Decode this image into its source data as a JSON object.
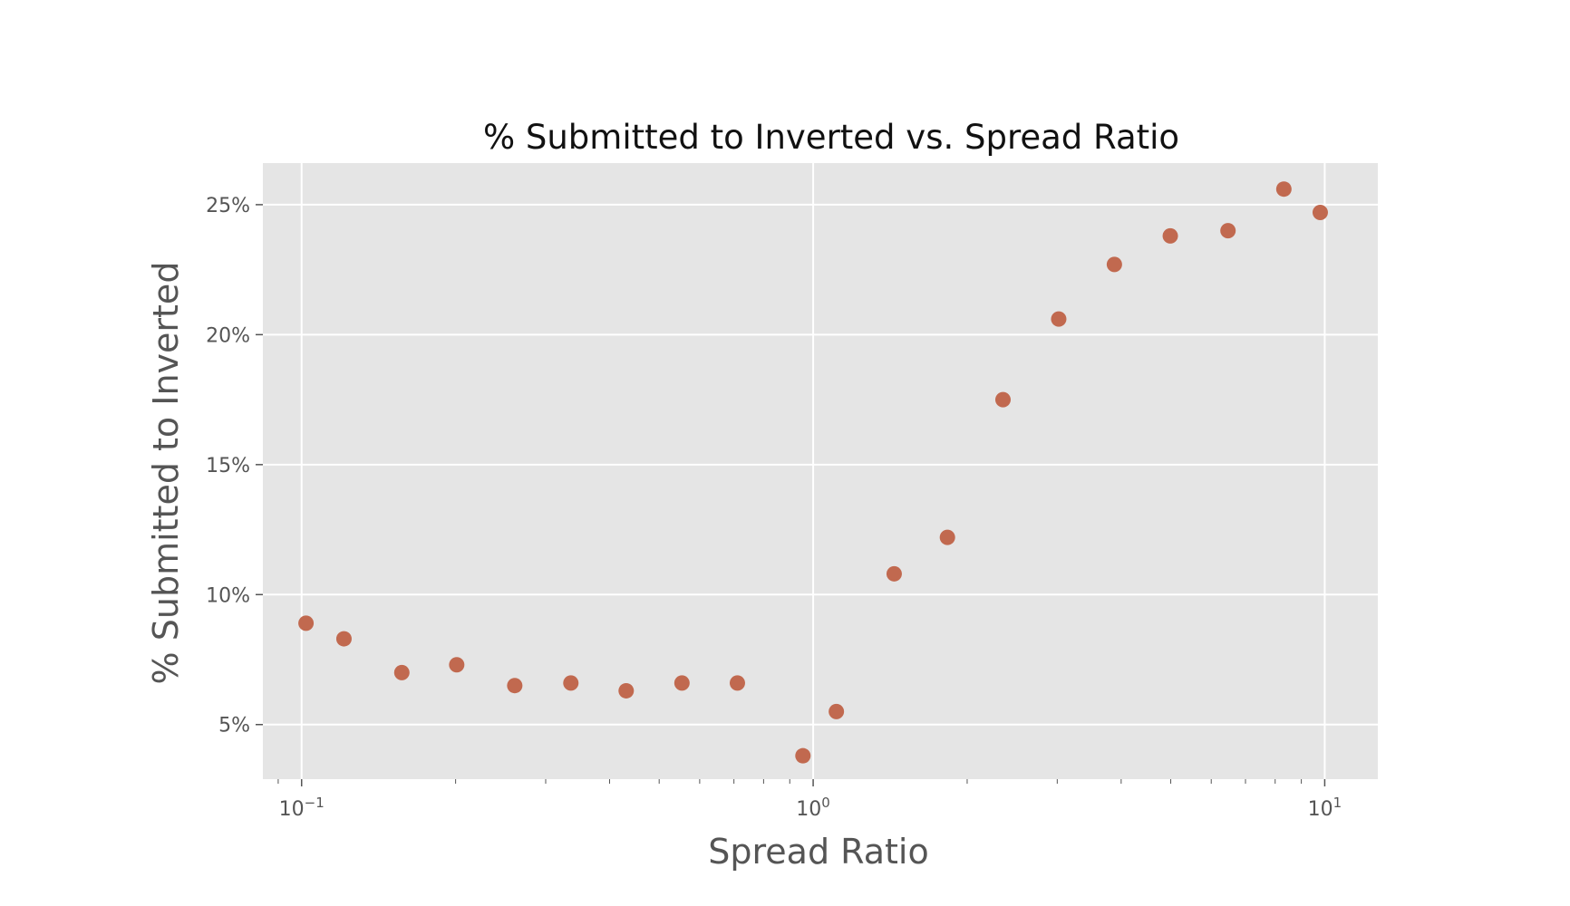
{
  "chart_data": {
    "type": "scatter",
    "title": "% Submitted to Inverted vs. Spread Ratio",
    "xlabel": "Spread Ratio",
    "ylabel": "% Submitted to Inverted",
    "x_scale": "log",
    "xlim": [
      0.084,
      12.7
    ],
    "ylim": [
      0.029,
      0.266
    ],
    "x_ticks": [
      {
        "value": 0.1,
        "base": "10",
        "exp": "−1"
      },
      {
        "value": 1,
        "base": "10",
        "exp": "0"
      },
      {
        "value": 10,
        "base": "10",
        "exp": "1"
      }
    ],
    "y_ticks": [
      {
        "value": 0.05,
        "label": "5%"
      },
      {
        "value": 0.1,
        "label": "10%"
      },
      {
        "value": 0.15,
        "label": "15%"
      },
      {
        "value": 0.2,
        "label": "20%"
      },
      {
        "value": 0.25,
        "label": "25%"
      }
    ],
    "grid": true,
    "background_color": "#e5e5e5",
    "grid_color": "#ffffff",
    "marker_color": "#c1694f",
    "points": [
      {
        "x": 0.102,
        "y": 0.089
      },
      {
        "x": 0.121,
        "y": 0.083
      },
      {
        "x": 0.157,
        "y": 0.07
      },
      {
        "x": 0.201,
        "y": 0.073
      },
      {
        "x": 0.261,
        "y": 0.065
      },
      {
        "x": 0.336,
        "y": 0.066
      },
      {
        "x": 0.431,
        "y": 0.063
      },
      {
        "x": 0.554,
        "y": 0.066
      },
      {
        "x": 0.711,
        "y": 0.066
      },
      {
        "x": 0.955,
        "y": 0.038
      },
      {
        "x": 1.11,
        "y": 0.055
      },
      {
        "x": 1.44,
        "y": 0.108
      },
      {
        "x": 1.83,
        "y": 0.122
      },
      {
        "x": 2.35,
        "y": 0.175
      },
      {
        "x": 3.02,
        "y": 0.206
      },
      {
        "x": 3.88,
        "y": 0.227
      },
      {
        "x": 4.99,
        "y": 0.238
      },
      {
        "x": 6.47,
        "y": 0.24
      },
      {
        "x": 8.32,
        "y": 0.256
      },
      {
        "x": 9.8,
        "y": 0.247
      }
    ]
  }
}
